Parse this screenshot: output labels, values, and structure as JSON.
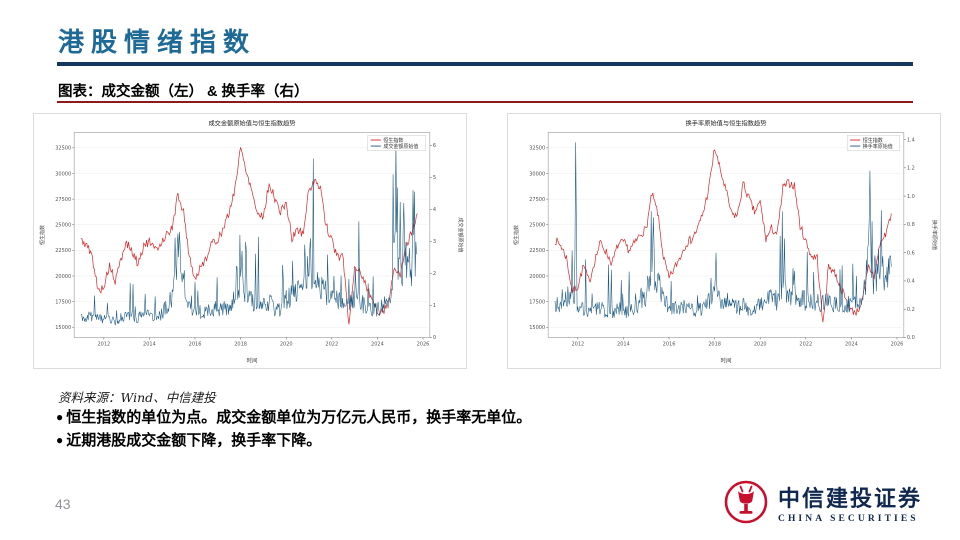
{
  "slide": {
    "title": "港股情绪指数",
    "subtitle": "图表：成交金额（左） & 换手率（右）",
    "source": "资料来源：Wind、中信建投",
    "bullets": [
      "恒生指数的单位为点。成交金额单位为万亿元人民币，换手率无单位。",
      "近期港股成交金额下降，换手率下降。"
    ],
    "page_number": "43",
    "logo": {
      "name_cn": "中信建投证券",
      "name_en": "CHINA SECURITIES"
    }
  },
  "colors": {
    "title": "#1e6a96",
    "rule_navy": "#17365d",
    "rule_maroon": "#8b1a1a",
    "hsi_red": "#d62728",
    "series_blue": "#17557f",
    "logo_red": "#c8102e",
    "logo_navy": "#10284f",
    "page_number": "#8d9399"
  },
  "chart_data": [
    {
      "type": "line",
      "title": "成交金额原始值与恒生指数趋势",
      "xlabel": "时间",
      "ylabel_left": "恒生指数",
      "ylabel_right": "成交金额原始值",
      "xlim": [
        2010.7,
        2026.3
      ],
      "x_ticks": [
        2012,
        2014,
        2016,
        2018,
        2020,
        2022,
        2024,
        2026
      ],
      "ylim_left": [
        14000,
        34000
      ],
      "yticks_left": [
        15000,
        17500,
        20000,
        22500,
        25000,
        27500,
        30000,
        32500
      ],
      "ylim_right": [
        0,
        6.4
      ],
      "yticks_right": [
        0,
        1,
        2,
        3,
        4,
        5,
        6
      ],
      "legend_position": "upper right",
      "grid": true,
      "series": [
        {
          "name": "恒生指数",
          "axis": "left",
          "color": "#d62728",
          "width": 0.7,
          "x_start": 2011.0,
          "x_step": 0.25,
          "upsample": 6,
          "noise": {
            "mode": "additive",
            "amp": 420,
            "seed": 5
          },
          "y": [
            23500,
            23000,
            21800,
            18500,
            19000,
            21000,
            19400,
            21600,
            23300,
            22300,
            21200,
            23000,
            23300,
            22500,
            23200,
            24100,
            24600,
            28000,
            26200,
            21900,
            19700,
            20800,
            21900,
            23200,
            23600,
            24600,
            26200,
            28600,
            32500,
            30300,
            28300,
            26000,
            25900,
            29000,
            27600,
            26200,
            27200,
            23600,
            24600,
            24100,
            28600,
            29100,
            28800,
            24900,
            23400,
            21900,
            21800,
            15200,
            21000,
            20400,
            19100,
            17700,
            16600,
            16500,
            17700,
            20900,
            19900,
            23100,
            24100,
            26100
          ]
        },
        {
          "name": "成交金额原始值",
          "axis": "right",
          "color": "#17557f",
          "width": 0.55,
          "x_start": 2011.0,
          "x_step": 0.25,
          "upsample": 8,
          "noise": {
            "mode": "spiky",
            "amp": 0.5,
            "spike_p": 0.08,
            "spike_amp": 1.4,
            "seed": 11
          },
          "events": [
            [
              2015.3,
              3.3
            ],
            [
              2018.05,
              2.7
            ],
            [
              2020.8,
              2.9
            ],
            [
              2021.05,
              3.1
            ],
            [
              2024.8,
              6.1
            ],
            [
              2025.15,
              4.2
            ],
            [
              2025.55,
              4.6
            ]
          ],
          "y": [
            0.7,
            0.6,
            0.7,
            0.6,
            0.55,
            0.6,
            0.5,
            0.6,
            0.7,
            0.65,
            0.6,
            0.7,
            0.7,
            0.6,
            0.7,
            1.0,
            1.3,
            2.6,
            1.8,
            1.0,
            0.8,
            0.7,
            0.8,
            0.9,
            0.9,
            0.9,
            1.0,
            1.2,
            1.6,
            1.3,
            1.1,
            1.0,
            1.0,
            1.1,
            0.9,
            0.9,
            1.2,
            1.3,
            1.5,
            1.4,
            2.2,
            1.7,
            1.6,
            1.4,
            1.3,
            1.2,
            1.1,
            1.0,
            1.3,
            1.1,
            1.0,
            0.9,
            0.9,
            1.0,
            1.1,
            2.6,
            2.0,
            2.4,
            2.2,
            2.6
          ]
        }
      ]
    },
    {
      "type": "line",
      "title": "换手率原始值与恒生指数趋势",
      "xlabel": "时间",
      "ylabel_left": "恒生指数",
      "ylabel_right": "换手率原始值",
      "xlim": [
        2010.7,
        2026.3
      ],
      "x_ticks": [
        2012,
        2014,
        2016,
        2018,
        2020,
        2022,
        2024,
        2026
      ],
      "ylim_left": [
        14000,
        34000
      ],
      "yticks_left": [
        15000,
        17500,
        20000,
        22500,
        25000,
        27500,
        30000,
        32500
      ],
      "ylim_right": [
        0,
        1.45
      ],
      "yticks_right": [
        0.0,
        0.2,
        0.4,
        0.6,
        0.8,
        1.0,
        1.2,
        1.4
      ],
      "legend_position": "upper right",
      "grid": true,
      "series": [
        {
          "name": "恒生指数",
          "axis": "left",
          "color": "#d62728",
          "width": 0.7,
          "x_start": 2011.0,
          "x_step": 0.25,
          "upsample": 6,
          "noise": {
            "mode": "additive",
            "amp": 420,
            "seed": 7
          },
          "y": [
            23500,
            23000,
            21800,
            18500,
            19000,
            21000,
            19400,
            21600,
            23300,
            22300,
            21200,
            23000,
            23300,
            22500,
            23200,
            24100,
            24600,
            28000,
            26200,
            21900,
            19700,
            20800,
            21900,
            23200,
            23600,
            24600,
            26200,
            28600,
            32500,
            30300,
            28300,
            26000,
            25900,
            29000,
            27600,
            26200,
            27200,
            23600,
            24600,
            24100,
            28600,
            29100,
            28800,
            24900,
            23400,
            21900,
            21800,
            15200,
            21000,
            20400,
            19100,
            17700,
            16600,
            16500,
            17700,
            20900,
            19900,
            23100,
            24100,
            26100
          ]
        },
        {
          "name": "换手率原始值",
          "axis": "right",
          "color": "#17557f",
          "width": 0.55,
          "x_start": 2011.0,
          "x_step": 0.25,
          "upsample": 8,
          "noise": {
            "mode": "spiky",
            "amp": 0.5,
            "spike_p": 0.09,
            "spike_amp": 1.1,
            "seed": 13
          },
          "events": [
            [
              2011.9,
              1.38
            ],
            [
              2015.3,
              0.85
            ],
            [
              2018.05,
              0.6
            ],
            [
              2021.05,
              0.7
            ],
            [
              2024.8,
              1.18
            ],
            [
              2025.3,
              0.9
            ]
          ],
          "y": [
            0.25,
            0.22,
            0.28,
            0.3,
            0.22,
            0.2,
            0.18,
            0.2,
            0.2,
            0.19,
            0.18,
            0.2,
            0.2,
            0.18,
            0.2,
            0.28,
            0.3,
            0.5,
            0.4,
            0.28,
            0.22,
            0.2,
            0.2,
            0.22,
            0.2,
            0.2,
            0.22,
            0.25,
            0.3,
            0.26,
            0.24,
            0.22,
            0.22,
            0.22,
            0.2,
            0.2,
            0.25,
            0.26,
            0.28,
            0.26,
            0.38,
            0.3,
            0.3,
            0.28,
            0.26,
            0.25,
            0.24,
            0.26,
            0.26,
            0.24,
            0.22,
            0.22,
            0.22,
            0.24,
            0.26,
            0.55,
            0.4,
            0.45,
            0.42,
            0.5
          ]
        }
      ]
    }
  ]
}
